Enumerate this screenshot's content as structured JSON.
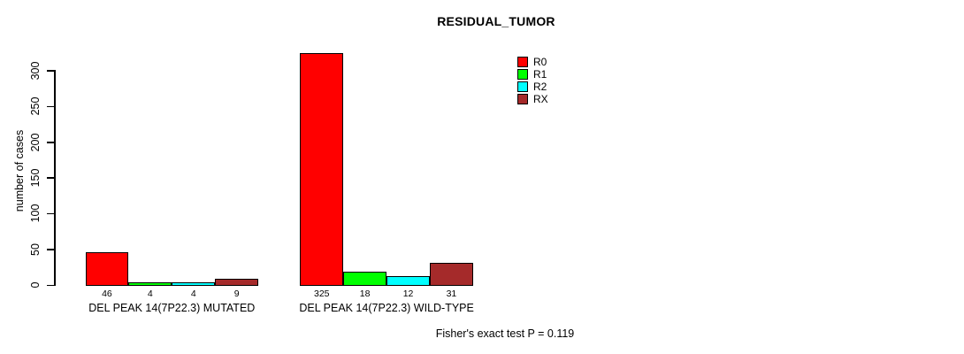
{
  "chart_data": {
    "type": "bar",
    "grouped": true,
    "title": "RESIDUAL_TUMOR",
    "xlabel": "",
    "ylabel": "number of cases",
    "categories": [
      "DEL PEAK 14(7P22.3) MUTATED",
      "DEL PEAK 14(7P22.3) WILD-TYPE"
    ],
    "series": [
      {
        "name": "R0",
        "color": "#FF0000",
        "values": [
          46,
          325
        ]
      },
      {
        "name": "R1",
        "color": "#00FF00",
        "values": [
          4,
          18
        ]
      },
      {
        "name": "R2",
        "color": "#00FFFF",
        "values": [
          4,
          12
        ]
      },
      {
        "name": "RX",
        "color": "#A52A2A",
        "values": [
          9,
          31
        ]
      }
    ],
    "bar_value_labels_shown": true,
    "yticks": [
      0,
      50,
      100,
      150,
      200,
      250,
      300
    ],
    "ylim": [
      0,
      335
    ],
    "grid": false,
    "legend_position": "top-right",
    "footnote": "Fisher's exact test P = 0.119"
  }
}
